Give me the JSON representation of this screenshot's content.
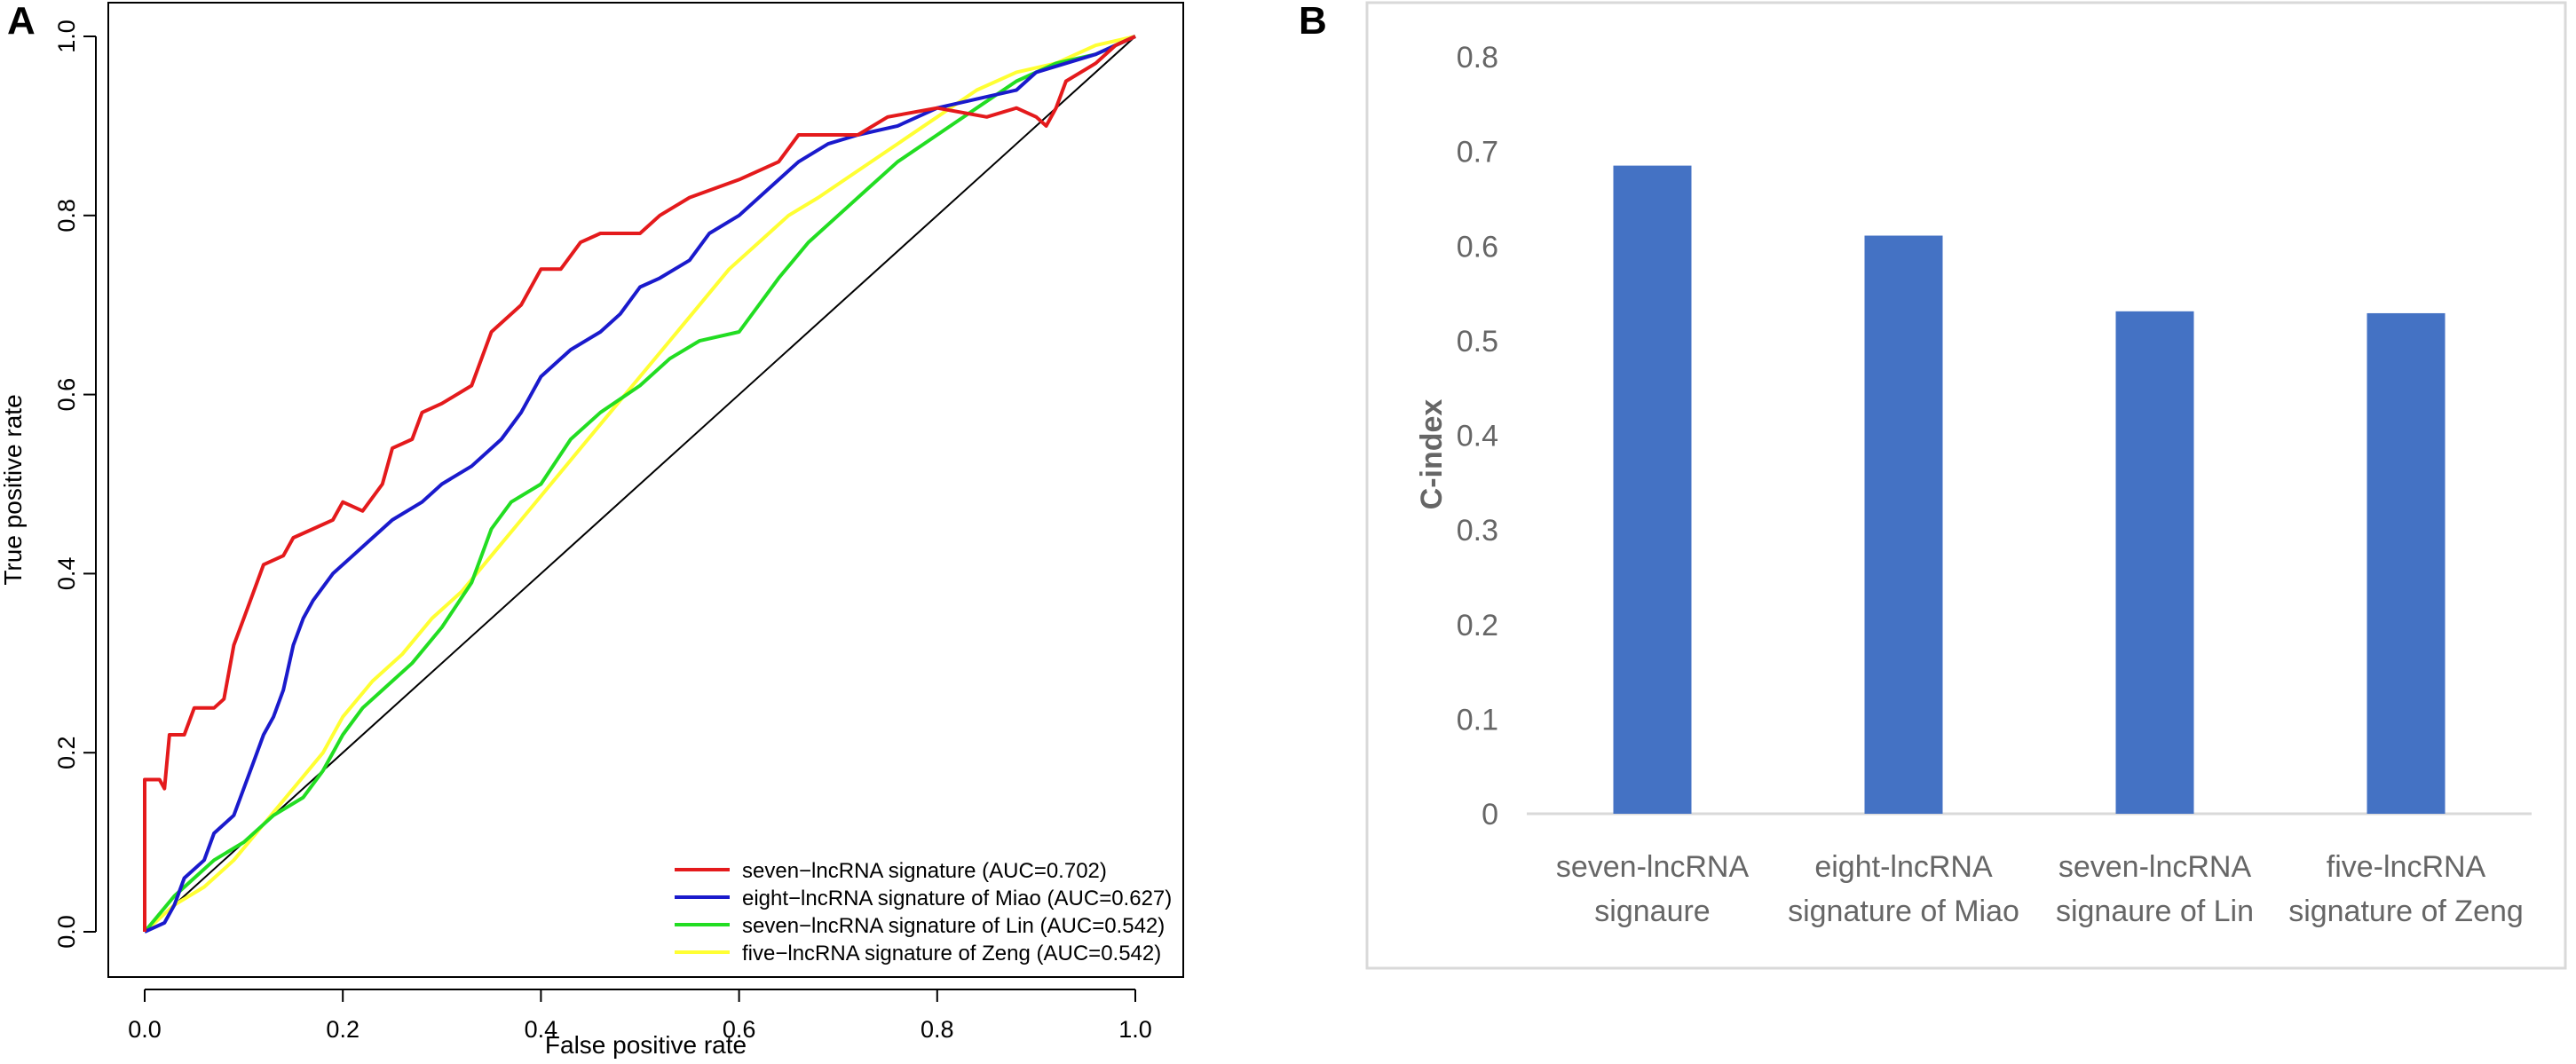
{
  "chart_data": [
    {
      "panel": "A",
      "type": "line",
      "title": "",
      "xlabel": "False positive rate",
      "ylabel": "True positive rate",
      "xlim": [
        0,
        1
      ],
      "ylim": [
        0,
        1
      ],
      "x_ticks": [
        "0.0",
        "0.2",
        "0.4",
        "0.6",
        "0.8",
        "1.0"
      ],
      "y_ticks": [
        "0.0",
        "0.2",
        "0.4",
        "0.6",
        "0.8",
        "1.0"
      ],
      "reference_line": [
        [
          0,
          0
        ],
        [
          1,
          1
        ]
      ],
      "legend_position": "bottom-right",
      "series": [
        {
          "name": "seven−lncRNA signature (AUC=0.702)",
          "color": "#e41a1c",
          "points": [
            [
              0,
              0
            ],
            [
              0,
              0.17
            ],
            [
              0.015,
              0.17
            ],
            [
              0.02,
              0.16
            ],
            [
              0.025,
              0.22
            ],
            [
              0.04,
              0.22
            ],
            [
              0.05,
              0.25
            ],
            [
              0.07,
              0.25
            ],
            [
              0.08,
              0.26
            ],
            [
              0.09,
              0.32
            ],
            [
              0.1,
              0.35
            ],
            [
              0.11,
              0.38
            ],
            [
              0.12,
              0.41
            ],
            [
              0.14,
              0.42
            ],
            [
              0.15,
              0.44
            ],
            [
              0.17,
              0.45
            ],
            [
              0.19,
              0.46
            ],
            [
              0.2,
              0.48
            ],
            [
              0.22,
              0.47
            ],
            [
              0.24,
              0.5
            ],
            [
              0.25,
              0.54
            ],
            [
              0.27,
              0.55
            ],
            [
              0.28,
              0.58
            ],
            [
              0.3,
              0.59
            ],
            [
              0.33,
              0.61
            ],
            [
              0.35,
              0.67
            ],
            [
              0.38,
              0.7
            ],
            [
              0.4,
              0.74
            ],
            [
              0.42,
              0.74
            ],
            [
              0.44,
              0.77
            ],
            [
              0.46,
              0.78
            ],
            [
              0.5,
              0.78
            ],
            [
              0.52,
              0.8
            ],
            [
              0.55,
              0.82
            ],
            [
              0.6,
              0.84
            ],
            [
              0.64,
              0.86
            ],
            [
              0.66,
              0.89
            ],
            [
              0.72,
              0.89
            ],
            [
              0.75,
              0.91
            ],
            [
              0.8,
              0.92
            ],
            [
              0.85,
              0.91
            ],
            [
              0.88,
              0.92
            ],
            [
              0.9,
              0.91
            ],
            [
              0.91,
              0.9
            ],
            [
              0.92,
              0.92
            ],
            [
              0.93,
              0.95
            ],
            [
              0.96,
              0.97
            ],
            [
              0.98,
              0.99
            ],
            [
              1,
              1
            ]
          ]
        },
        {
          "name": "eight−lncRNA signature of Miao (AUC=0.627)",
          "color": "#1a1acc",
          "points": [
            [
              0,
              0
            ],
            [
              0.02,
              0.01
            ],
            [
              0.03,
              0.03
            ],
            [
              0.04,
              0.06
            ],
            [
              0.06,
              0.08
            ],
            [
              0.07,
              0.11
            ],
            [
              0.09,
              0.13
            ],
            [
              0.1,
              0.16
            ],
            [
              0.11,
              0.19
            ],
            [
              0.12,
              0.22
            ],
            [
              0.13,
              0.24
            ],
            [
              0.14,
              0.27
            ],
            [
              0.15,
              0.32
            ],
            [
              0.16,
              0.35
            ],
            [
              0.17,
              0.37
            ],
            [
              0.19,
              0.4
            ],
            [
              0.21,
              0.42
            ],
            [
              0.23,
              0.44
            ],
            [
              0.25,
              0.46
            ],
            [
              0.28,
              0.48
            ],
            [
              0.3,
              0.5
            ],
            [
              0.33,
              0.52
            ],
            [
              0.36,
              0.55
            ],
            [
              0.38,
              0.58
            ],
            [
              0.4,
              0.62
            ],
            [
              0.43,
              0.65
            ],
            [
              0.46,
              0.67
            ],
            [
              0.48,
              0.69
            ],
            [
              0.5,
              0.72
            ],
            [
              0.52,
              0.73
            ],
            [
              0.55,
              0.75
            ],
            [
              0.57,
              0.78
            ],
            [
              0.6,
              0.8
            ],
            [
              0.63,
              0.83
            ],
            [
              0.66,
              0.86
            ],
            [
              0.69,
              0.88
            ],
            [
              0.72,
              0.89
            ],
            [
              0.76,
              0.9
            ],
            [
              0.8,
              0.92
            ],
            [
              0.84,
              0.93
            ],
            [
              0.88,
              0.94
            ],
            [
              0.9,
              0.96
            ],
            [
              0.93,
              0.97
            ],
            [
              0.96,
              0.98
            ],
            [
              1,
              1
            ]
          ]
        },
        {
          "name": "seven−lncRNA signature of Lin (AUC=0.542)",
          "color": "#22dd22",
          "points": [
            [
              0,
              0
            ],
            [
              0.03,
              0.04
            ],
            [
              0.05,
              0.06
            ],
            [
              0.07,
              0.08
            ],
            [
              0.1,
              0.1
            ],
            [
              0.13,
              0.13
            ],
            [
              0.16,
              0.15
            ],
            [
              0.18,
              0.18
            ],
            [
              0.2,
              0.22
            ],
            [
              0.22,
              0.25
            ],
            [
              0.24,
              0.27
            ],
            [
              0.27,
              0.3
            ],
            [
              0.3,
              0.34
            ],
            [
              0.33,
              0.39
            ],
            [
              0.35,
              0.45
            ],
            [
              0.37,
              0.48
            ],
            [
              0.4,
              0.5
            ],
            [
              0.43,
              0.55
            ],
            [
              0.46,
              0.58
            ],
            [
              0.5,
              0.61
            ],
            [
              0.53,
              0.64
            ],
            [
              0.56,
              0.66
            ],
            [
              0.6,
              0.67
            ],
            [
              0.64,
              0.73
            ],
            [
              0.67,
              0.77
            ],
            [
              0.7,
              0.8
            ],
            [
              0.73,
              0.83
            ],
            [
              0.76,
              0.86
            ],
            [
              0.8,
              0.89
            ],
            [
              0.84,
              0.92
            ],
            [
              0.88,
              0.95
            ],
            [
              0.92,
              0.97
            ],
            [
              0.96,
              0.98
            ],
            [
              1,
              1
            ]
          ]
        },
        {
          "name": "five−lncRNA signature of Zeng (AUC=0.542)",
          "color": "#ffff33",
          "points": [
            [
              0,
              0
            ],
            [
              0.03,
              0.03
            ],
            [
              0.06,
              0.05
            ],
            [
              0.09,
              0.08
            ],
            [
              0.12,
              0.12
            ],
            [
              0.15,
              0.16
            ],
            [
              0.18,
              0.2
            ],
            [
              0.2,
              0.24
            ],
            [
              0.23,
              0.28
            ],
            [
              0.26,
              0.31
            ],
            [
              0.29,
              0.35
            ],
            [
              0.32,
              0.38
            ],
            [
              0.35,
              0.42
            ],
            [
              0.38,
              0.46
            ],
            [
              0.41,
              0.5
            ],
            [
              0.44,
              0.54
            ],
            [
              0.47,
              0.58
            ],
            [
              0.5,
              0.62
            ],
            [
              0.53,
              0.66
            ],
            [
              0.56,
              0.7
            ],
            [
              0.59,
              0.74
            ],
            [
              0.62,
              0.77
            ],
            [
              0.65,
              0.8
            ],
            [
              0.68,
              0.82
            ],
            [
              0.72,
              0.85
            ],
            [
              0.76,
              0.88
            ],
            [
              0.8,
              0.91
            ],
            [
              0.84,
              0.94
            ],
            [
              0.88,
              0.96
            ],
            [
              0.92,
              0.97
            ],
            [
              0.96,
              0.99
            ],
            [
              1,
              1
            ]
          ]
        }
      ]
    },
    {
      "panel": "B",
      "type": "bar",
      "title": "",
      "xlabel": "",
      "ylabel": "C-index",
      "ylim": [
        0,
        0.8
      ],
      "y_ticks": [
        "0",
        "0.1",
        "0.2",
        "0.3",
        "0.4",
        "0.5",
        "0.6",
        "0.7",
        "0.8"
      ],
      "categories": [
        [
          "seven-lncRNA",
          "signaure"
        ],
        [
          "eight-lncRNA",
          "signature of Miao"
        ],
        [
          "seven-lncRNA",
          "signaure of Lin"
        ],
        [
          "five-lncRNA",
          "signature of Zeng"
        ]
      ],
      "values": [
        0.685,
        0.611,
        0.531,
        0.529
      ],
      "bar_color": "#4472c4",
      "grid": false
    }
  ]
}
